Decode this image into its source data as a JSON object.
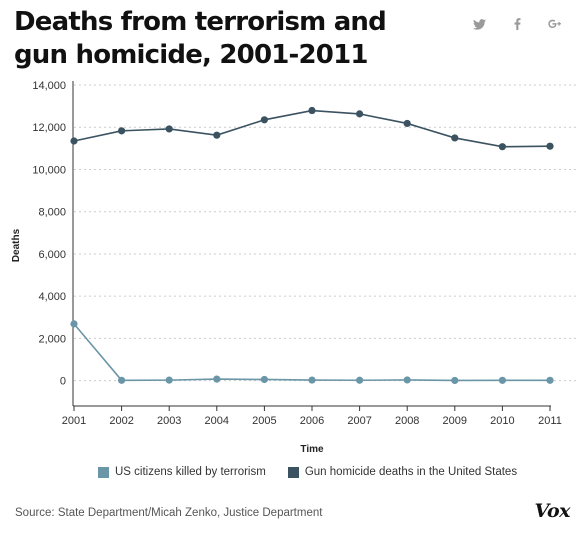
{
  "header": {
    "title": "Deaths from terrorism and gun homicide, 2001-2011"
  },
  "share": [
    {
      "name": "twitter-share-button",
      "icon": "twitter-icon"
    },
    {
      "name": "facebook-share-button",
      "icon": "facebook-icon"
    },
    {
      "name": "google-plus-share-button",
      "icon": "google-plus-icon"
    }
  ],
  "colors": {
    "terrorism": "#6a96a8",
    "gun": "#3b5361",
    "grid": "#cccccc"
  },
  "chart_data": {
    "type": "line",
    "title": "Deaths from terrorism and gun homicide, 2001-2011",
    "xlabel": "Time",
    "ylabel": "Deaths",
    "x": [
      2001,
      2002,
      2003,
      2004,
      2005,
      2006,
      2007,
      2008,
      2009,
      2010,
      2011
    ],
    "ylim": [
      -1200,
      14000
    ],
    "yticks": [
      0,
      2000,
      4000,
      6000,
      8000,
      10000,
      12000,
      14000
    ],
    "ytick_labels": [
      "0",
      "2,000",
      "4,000",
      "6,000",
      "8,000",
      "10,000",
      "12,000",
      "14,000"
    ],
    "grid": true,
    "legend_position": "bottom",
    "series": [
      {
        "name": "US citizens killed by terrorism",
        "color": "#6a96a8",
        "values": [
          2689,
          17,
          25,
          74,
          56,
          28,
          19,
          33,
          9,
          15,
          17
        ]
      },
      {
        "name": "Gun homicide deaths in the United States",
        "color": "#3b5361",
        "values": [
          11348,
          11829,
          11920,
          11624,
          12352,
          12791,
          12632,
          12179,
          11493,
          11078,
          11101
        ]
      }
    ]
  },
  "legend": [
    {
      "label": "US citizens killed by terrorism",
      "color": "#6a96a8"
    },
    {
      "label": "Gun homicide deaths in the United States",
      "color": "#3b5361"
    }
  ],
  "footer": {
    "source": "Source: State Department/Micah Zenko, Justice Department",
    "logo": "Vox"
  }
}
